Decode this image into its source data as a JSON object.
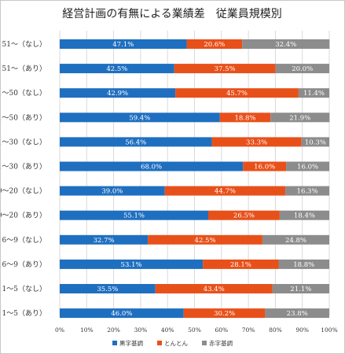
{
  "chart_data": {
    "type": "bar",
    "orientation": "horizontal",
    "stacked": true,
    "title": "経営計画の有無による業績差　従業員規模別",
    "categories": [
      "51～（なし）",
      "51～（あり）",
      "31～50（なし）",
      "31～50（あり）",
      "21～30（なし）",
      "21～30（あり）",
      "10～20（なし）",
      "10～20（あり）",
      "6～9（なし）",
      "6～9（あり）",
      "1～5（なし）",
      "1～5（あり）"
    ],
    "series": [
      {
        "name": "黒字基調",
        "color": "#1f6fc0",
        "values": [
          47.1,
          42.5,
          42.9,
          59.4,
          56.4,
          68.0,
          39.0,
          55.1,
          32.7,
          53.1,
          35.5,
          46.0
        ]
      },
      {
        "name": "とんとん",
        "color": "#e8501a",
        "values": [
          20.6,
          37.5,
          45.7,
          18.8,
          33.3,
          16.0,
          44.7,
          26.5,
          42.5,
          28.1,
          43.4,
          30.2
        ]
      },
      {
        "name": "赤字基調",
        "color": "#8c8c8c",
        "values": [
          32.4,
          20.0,
          11.4,
          21.9,
          10.3,
          16.0,
          16.3,
          18.4,
          24.8,
          18.8,
          21.1,
          23.8
        ]
      }
    ],
    "data_labels": [
      [
        "47.1%",
        "20.6%",
        "32.4%"
      ],
      [
        "42.5%",
        "37.5%",
        "20.0%"
      ],
      [
        "42.9%",
        "45.7%",
        "11.4%"
      ],
      [
        "59.4%",
        "18.8%",
        "21.9%"
      ],
      [
        "56.4%",
        "33.3%",
        "10.3%"
      ],
      [
        "68.0%",
        "16.0%",
        "16.0%"
      ],
      [
        "39.0%",
        "44.7%",
        "16.3%"
      ],
      [
        "55.1%",
        "26.5%",
        "18.4%"
      ],
      [
        "32.7%",
        "42.5%",
        "24.8%"
      ],
      [
        "53.1%",
        "28.1%",
        "18.8%"
      ],
      [
        "35.5%",
        "43.4%",
        "21.1%"
      ],
      [
        "46.0%",
        "30.2%",
        "23.8%"
      ]
    ],
    "xlim": [
      0,
      100
    ],
    "x_ticks": [
      0,
      10,
      20,
      30,
      40,
      50,
      60,
      70,
      80,
      90,
      100
    ],
    "x_tick_labels": [
      "0%",
      "10%",
      "20%",
      "30%",
      "40%",
      "50%",
      "60%",
      "70%",
      "80%",
      "90%",
      "100%"
    ],
    "grid": true,
    "legend_position": "bottom",
    "xlabel": "",
    "ylabel": ""
  }
}
